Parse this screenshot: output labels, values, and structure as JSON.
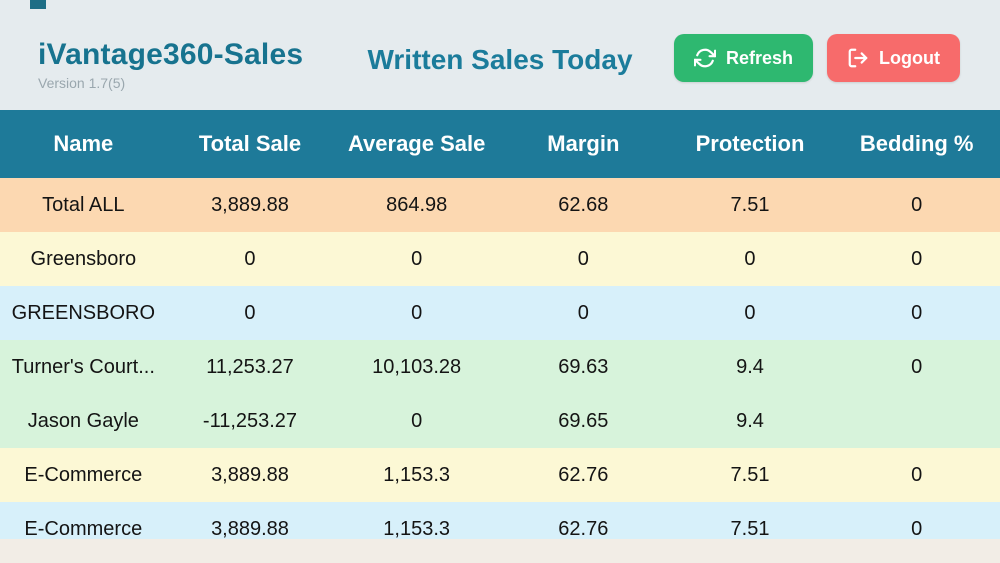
{
  "app": {
    "title": "iVantage360-Sales",
    "version": "Version 1.7(5)",
    "page_title": "Written Sales Today"
  },
  "buttons": {
    "refresh": "Refresh",
    "logout": "Logout"
  },
  "icons": {
    "refresh": "refresh-cw-icon",
    "logout": "log-out-icon"
  },
  "colors": {
    "page_bg": "#E5EBEE",
    "table_header": "#1E7A99",
    "accent_teal": "#17738F",
    "refresh_green": "#2EB870",
    "logout_red": "#F76B6B",
    "row_total_peach": "#FCD8B1",
    "row_yellow": "#FCF8D5",
    "row_blue": "#D7F0FA",
    "row_green": "#D7F3DB",
    "bottom_strip": "#F2EDE6"
  },
  "table": {
    "columns": [
      "Name",
      "Total Sale",
      "Average Sale",
      "Margin",
      "Protection",
      "Bedding %"
    ],
    "rows": [
      {
        "name": "Total ALL",
        "values": [
          "3,889.88",
          "864.98",
          "62.68",
          "7.51",
          "0"
        ],
        "bg": "#FCD8B1"
      },
      {
        "name": "Greensboro",
        "values": [
          "0",
          "0",
          "0",
          "0",
          "0"
        ],
        "bg": "#FCF8D5"
      },
      {
        "name": "GREENSBORO",
        "values": [
          "0",
          "0",
          "0",
          "0",
          "0"
        ],
        "bg": "#D7F0FA"
      },
      {
        "name": "Turner's Court...",
        "values": [
          "11,253.27",
          "10,103.28",
          "69.63",
          "9.4",
          "0"
        ],
        "bg": "#D7F3DB"
      },
      {
        "name": "Jason Gayle",
        "values": [
          "-11,253.27",
          "0",
          "69.65",
          "9.4",
          ""
        ],
        "bg": "#D7F3DB"
      },
      {
        "name": "E-Commerce",
        "values": [
          "3,889.88",
          "1,153.3",
          "62.76",
          "7.51",
          "0"
        ],
        "bg": "#FCF8D5"
      },
      {
        "name": "E-Commerce",
        "values": [
          "3,889.88",
          "1,153.3",
          "62.76",
          "7.51",
          "0"
        ],
        "bg": "#D7F0FA"
      }
    ]
  }
}
